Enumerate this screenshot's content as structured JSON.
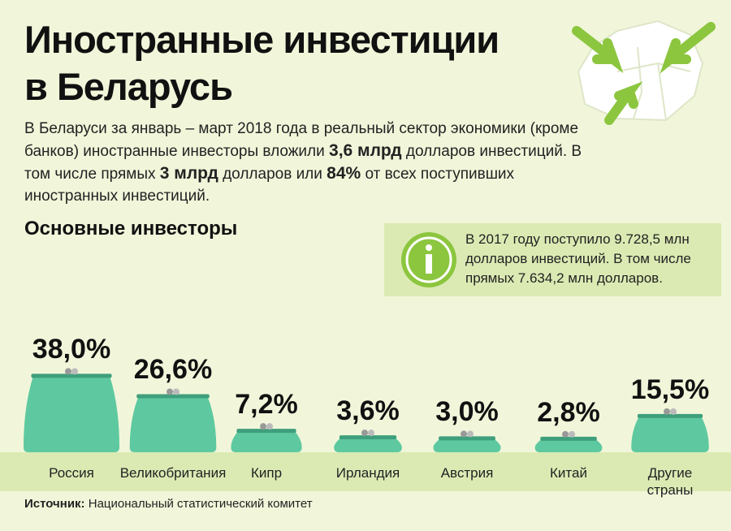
{
  "title_lines": [
    "Иностранные инвестиции",
    "в Беларусь"
  ],
  "intro": [
    {
      "text": "В Беларуси за январь – март 2018 года в реальный сектор экономики (кроме банков) иностранные инвесторы вложили ",
      "bold": false
    },
    {
      "text": "3,6 млрд",
      "bold": true
    },
    {
      "text": " долларов инвестиций. В том числе прямых ",
      "bold": false
    },
    {
      "text": "3 млрд",
      "bold": true
    },
    {
      "text": " долларов или ",
      "bold": false
    },
    {
      "text": "84%",
      "bold": true
    },
    {
      "text": " от всех поступивших иностранных инвестиций.",
      "bold": false
    }
  ],
  "info_box": "В 2017 году поступило 9.728,5 млн долларов инвестиций. В том числе прямых 7.634,2 млн долларов.",
  "chart_data": {
    "type": "purse",
    "title": "Основные инвесторы",
    "categories": [
      "Россия",
      "Великобритания",
      "Кипр",
      "Ирландия",
      "Австрия",
      "Китай",
      "Другие страны"
    ],
    "values": [
      38.0,
      26.6,
      7.2,
      3.6,
      3.0,
      2.8,
      15.5
    ],
    "value_labels": [
      "38,0%",
      "26,6%",
      "7,2%",
      "3,6%",
      "3,0%",
      "2,8%",
      "15,5%"
    ],
    "color": "#5ec9a0"
  },
  "source": {
    "label": "Источник:",
    "text": "Национальный статистический комитет"
  }
}
